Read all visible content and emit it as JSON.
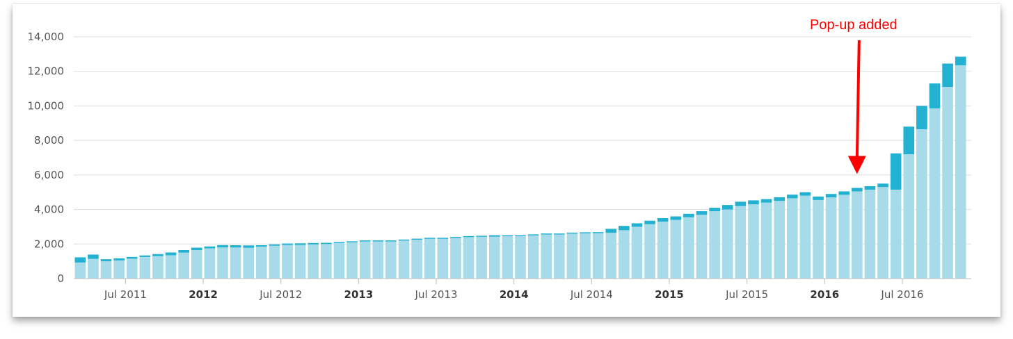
{
  "chart_data": {
    "type": "bar",
    "stacked": true,
    "ylim": [
      0,
      14000
    ],
    "yticks": [
      0,
      2000,
      4000,
      6000,
      8000,
      10000,
      12000,
      14000
    ],
    "ytick_labels": [
      "0",
      "2,000",
      "4,000",
      "6,000",
      "8,000",
      "10,000",
      "12,000",
      "14,000"
    ],
    "grid": true,
    "x_start": "2011-03",
    "xticks": [
      {
        "label": "Jul 2011",
        "date": "2011-07",
        "major": false
      },
      {
        "label": "2012",
        "date": "2012-01",
        "major": true
      },
      {
        "label": "Jul 2012",
        "date": "2012-07",
        "major": false
      },
      {
        "label": "2013",
        "date": "2013-01",
        "major": true
      },
      {
        "label": "Jul 2013",
        "date": "2013-07",
        "major": false
      },
      {
        "label": "2014",
        "date": "2014-01",
        "major": true
      },
      {
        "label": "Jul 2014",
        "date": "2014-07",
        "major": false
      },
      {
        "label": "2015",
        "date": "2015-01",
        "major": true
      },
      {
        "label": "Jul 2015",
        "date": "2015-07",
        "major": false
      },
      {
        "label": "2016",
        "date": "2016-01",
        "major": true
      },
      {
        "label": "Jul 2016",
        "date": "2016-07",
        "major": false
      }
    ],
    "series": [
      {
        "color": "#a8dbe9",
        "values": [
          930,
          1140,
          1000,
          1050,
          1150,
          1250,
          1300,
          1350,
          1500,
          1650,
          1750,
          1800,
          1800,
          1780,
          1850,
          1900,
          1950,
          1950,
          1980,
          2000,
          2050,
          2100,
          2150,
          2150,
          2150,
          2200,
          2250,
          2300,
          2300,
          2350,
          2400,
          2420,
          2430,
          2450,
          2450,
          2500,
          2550,
          2550,
          2600,
          2620,
          2630,
          2650,
          2800,
          3000,
          3150,
          3300,
          3400,
          3550,
          3700,
          3900,
          4000,
          4200,
          4300,
          4400,
          4500,
          4650,
          4800,
          4550,
          4700,
          4850,
          5050,
          5150,
          5300,
          5150,
          7200,
          8650,
          9850,
          11100,
          12350
        ]
      },
      {
        "color": "#22b1d1",
        "values": [
          300,
          250,
          120,
          120,
          100,
          90,
          120,
          160,
          150,
          140,
          110,
          140,
          130,
          140,
          80,
          80,
          80,
          90,
          80,
          70,
          60,
          60,
          60,
          60,
          60,
          60,
          60,
          60,
          60,
          60,
          60,
          60,
          80,
          60,
          60,
          60,
          60,
          60,
          60,
          60,
          60,
          230,
          250,
          200,
          200,
          200,
          200,
          200,
          200,
          200,
          260,
          250,
          230,
          200,
          210,
          210,
          200,
          200,
          200,
          200,
          200,
          200,
          200,
          2100,
          1600,
          1350,
          1450,
          1350,
          500
        ]
      }
    ],
    "annotations": [
      {
        "text": "Pop-up added",
        "color": "#ff0000",
        "date": "2016-03",
        "arrow": "down"
      }
    ]
  }
}
